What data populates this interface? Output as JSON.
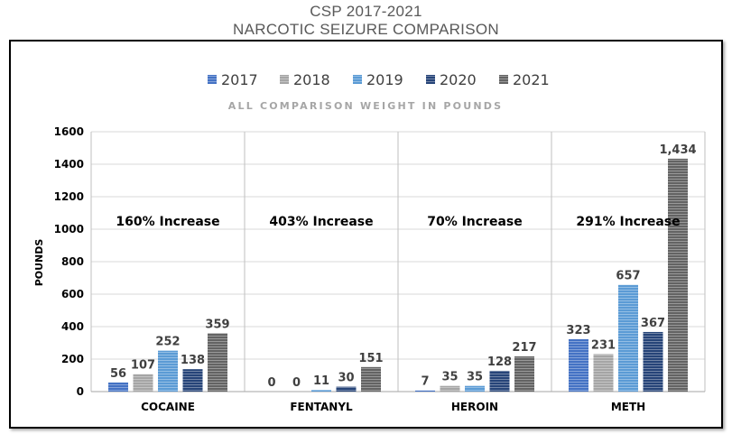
{
  "titles": [
    "CSP 2017-2021",
    "NARCOTIC SEIZURE COMPARISON"
  ],
  "chart_data": {
    "type": "bar",
    "title": "CSP 2017-2021 NARCOTIC SEIZURE COMPARISON",
    "subtitle": "ALL COMPARISON WEIGHT IN POUNDS",
    "ylabel": "POUNDS",
    "xlabel": "",
    "ylim": [
      0,
      1600
    ],
    "yticks": [
      "0",
      "200",
      "400",
      "600",
      "800",
      "1000",
      "1200",
      "1400",
      "1600"
    ],
    "grid": true,
    "legend_position": "top",
    "categories": [
      "COCAINE",
      "FENTANYL",
      "HEROIN",
      "METH"
    ],
    "series": [
      {
        "name": "2017",
        "color": "#4472C4",
        "values": [
          56,
          0,
          7,
          323
        ],
        "labels": [
          "56",
          "0",
          "7",
          "323"
        ]
      },
      {
        "name": "2018",
        "color": "#A5A5A5",
        "values": [
          107,
          0,
          35,
          231
        ],
        "labels": [
          "107",
          "0",
          "35",
          "231"
        ]
      },
      {
        "name": "2019",
        "color": "#5B9BD5",
        "values": [
          252,
          11,
          35,
          657
        ],
        "labels": [
          "252",
          "11",
          "35",
          "657"
        ]
      },
      {
        "name": "2020",
        "color": "#264478",
        "values": [
          138,
          30,
          128,
          367
        ],
        "labels": [
          "138",
          "30",
          "128",
          "367"
        ]
      },
      {
        "name": "2021",
        "color": "#636363",
        "values": [
          359,
          151,
          217,
          1434
        ],
        "labels": [
          "359",
          "151",
          "217",
          "1,434"
        ]
      }
    ],
    "annotations": [
      "160% Increase",
      "403% Increase",
      "70% Increase",
      "291% Increase"
    ]
  }
}
